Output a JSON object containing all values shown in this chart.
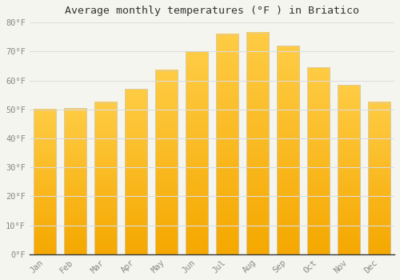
{
  "title": "Average monthly temperatures (°F ) in Briatico",
  "months": [
    "Jan",
    "Feb",
    "Mar",
    "Apr",
    "May",
    "Jun",
    "Jul",
    "Aug",
    "Sep",
    "Oct",
    "Nov",
    "Dec"
  ],
  "values": [
    50,
    50.5,
    52.5,
    57,
    63.5,
    70,
    76,
    76.5,
    72,
    64.5,
    58.5,
    52.5
  ],
  "bar_color_top": "#FFC844",
  "bar_color_bottom": "#F5A800",
  "bar_edge_color": "#CCCCCC",
  "background_color": "#F5F5F0",
  "plot_bg_color": "#F5F5F0",
  "grid_color": "#DDDDDD",
  "tick_label_color": "#888888",
  "title_color": "#333333",
  "ylim": [
    0,
    80
  ],
  "yticks": [
    0,
    10,
    20,
    30,
    40,
    50,
    60,
    70,
    80
  ],
  "ytick_labels": [
    "0°F",
    "10°F",
    "20°F",
    "30°F",
    "40°F",
    "50°F",
    "60°F",
    "70°F",
    "80°F"
  ]
}
